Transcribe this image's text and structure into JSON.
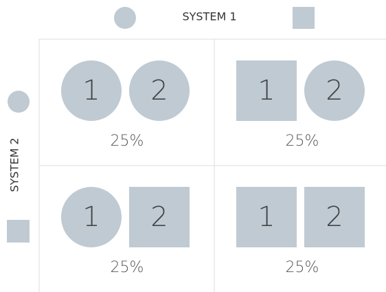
{
  "header": {
    "label": "SYSTEM 1"
  },
  "side": {
    "label": "SYSTEM 2"
  },
  "cells": [
    {
      "shapes": [
        {
          "shape": "circle",
          "label": "1"
        },
        {
          "shape": "circle",
          "label": "2"
        }
      ],
      "share": "25%"
    },
    {
      "shapes": [
        {
          "shape": "square",
          "label": "1"
        },
        {
          "shape": "circle",
          "label": "2"
        }
      ],
      "share": "25%"
    },
    {
      "shapes": [
        {
          "shape": "circle",
          "label": "1"
        },
        {
          "shape": "square",
          "label": "2"
        }
      ],
      "share": "25%"
    },
    {
      "shapes": [
        {
          "shape": "square",
          "label": "1"
        },
        {
          "shape": "square",
          "label": "2"
        }
      ],
      "share": "25%"
    }
  ],
  "color": "#bfcad3"
}
